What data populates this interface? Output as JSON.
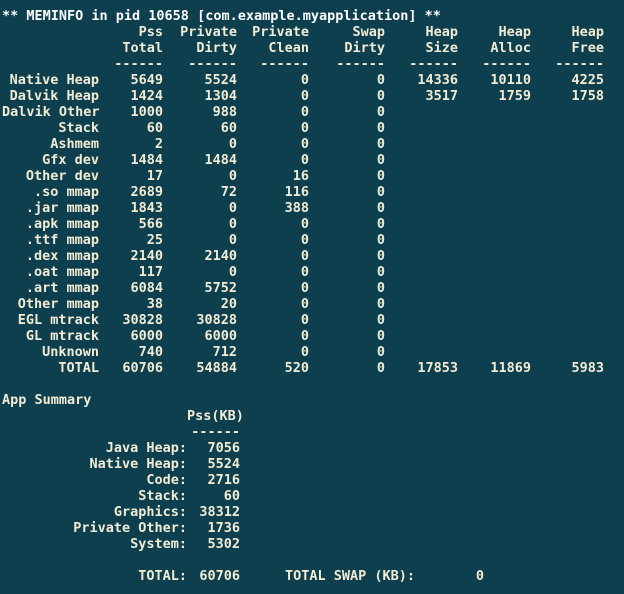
{
  "colors": {
    "background": "#0d3f4e",
    "title_text": "#fefefe",
    "body_text": "#f2ecd4"
  },
  "terminal": {
    "title": "** MEMINFO in pid 10658 [com.example.myapplication] **"
  },
  "meminfo": {
    "divider": "------",
    "columns": [
      {
        "line1": "Pss",
        "line2": "Total"
      },
      {
        "line1": "Private",
        "line2": "Dirty"
      },
      {
        "line1": "Private",
        "line2": "Clean"
      },
      {
        "line1": "Swap",
        "line2": "Dirty"
      },
      {
        "line1": "Heap",
        "line2": "Size"
      },
      {
        "line1": "Heap",
        "line2": "Alloc"
      },
      {
        "line1": "Heap",
        "line2": "Free"
      }
    ],
    "rows": [
      {
        "label": "Native Heap",
        "values": [
          "5649",
          "5524",
          "0",
          "0",
          "14336",
          "10110",
          "4225"
        ]
      },
      {
        "label": "Dalvik Heap",
        "values": [
          "1424",
          "1304",
          "0",
          "0",
          "3517",
          "1759",
          "1758"
        ]
      },
      {
        "label": "Dalvik Other",
        "values": [
          "1000",
          "988",
          "0",
          "0",
          "",
          "",
          ""
        ]
      },
      {
        "label": "Stack",
        "values": [
          "60",
          "60",
          "0",
          "0",
          "",
          "",
          ""
        ]
      },
      {
        "label": "Ashmem",
        "values": [
          "2",
          "0",
          "0",
          "0",
          "",
          "",
          ""
        ]
      },
      {
        "label": "Gfx dev",
        "values": [
          "1484",
          "1484",
          "0",
          "0",
          "",
          "",
          ""
        ]
      },
      {
        "label": "Other dev",
        "values": [
          "17",
          "0",
          "16",
          "0",
          "",
          "",
          ""
        ]
      },
      {
        "label": ".so mmap",
        "values": [
          "2689",
          "72",
          "116",
          "0",
          "",
          "",
          ""
        ]
      },
      {
        "label": ".jar mmap",
        "values": [
          "1843",
          "0",
          "388",
          "0",
          "",
          "",
          ""
        ]
      },
      {
        "label": ".apk mmap",
        "values": [
          "566",
          "0",
          "0",
          "0",
          "",
          "",
          ""
        ]
      },
      {
        "label": ".ttf mmap",
        "values": [
          "25",
          "0",
          "0",
          "0",
          "",
          "",
          ""
        ]
      },
      {
        "label": ".dex mmap",
        "values": [
          "2140",
          "2140",
          "0",
          "0",
          "",
          "",
          ""
        ]
      },
      {
        "label": ".oat mmap",
        "values": [
          "117",
          "0",
          "0",
          "0",
          "",
          "",
          ""
        ]
      },
      {
        "label": ".art mmap",
        "values": [
          "6084",
          "5752",
          "0",
          "0",
          "",
          "",
          ""
        ]
      },
      {
        "label": "Other mmap",
        "values": [
          "38",
          "20",
          "0",
          "0",
          "",
          "",
          ""
        ]
      },
      {
        "label": "EGL mtrack",
        "values": [
          "30828",
          "30828",
          "0",
          "0",
          "",
          "",
          ""
        ]
      },
      {
        "label": "GL mtrack",
        "values": [
          "6000",
          "6000",
          "0",
          "0",
          "",
          "",
          ""
        ]
      },
      {
        "label": "Unknown",
        "values": [
          "740",
          "712",
          "0",
          "0",
          "",
          "",
          ""
        ]
      },
      {
        "label": "TOTAL",
        "values": [
          "60706",
          "54884",
          "520",
          "0",
          "17853",
          "11869",
          "5983"
        ]
      }
    ]
  },
  "app_summary": {
    "heading": "App Summary",
    "column_header": "Pss(KB)",
    "divider": "------",
    "rows": [
      {
        "label": "Java Heap:",
        "value": "7056"
      },
      {
        "label": "Native Heap:",
        "value": "5524"
      },
      {
        "label": "Code:",
        "value": "2716"
      },
      {
        "label": "Stack:",
        "value": "60"
      },
      {
        "label": "Graphics:",
        "value": "38312"
      },
      {
        "label": "Private Other:",
        "value": "1736"
      },
      {
        "label": "System:",
        "value": "5302"
      }
    ],
    "total": {
      "label": "TOTAL:",
      "value": "60706",
      "swap_label": "TOTAL SWAP (KB):",
      "swap_value": "0"
    }
  }
}
